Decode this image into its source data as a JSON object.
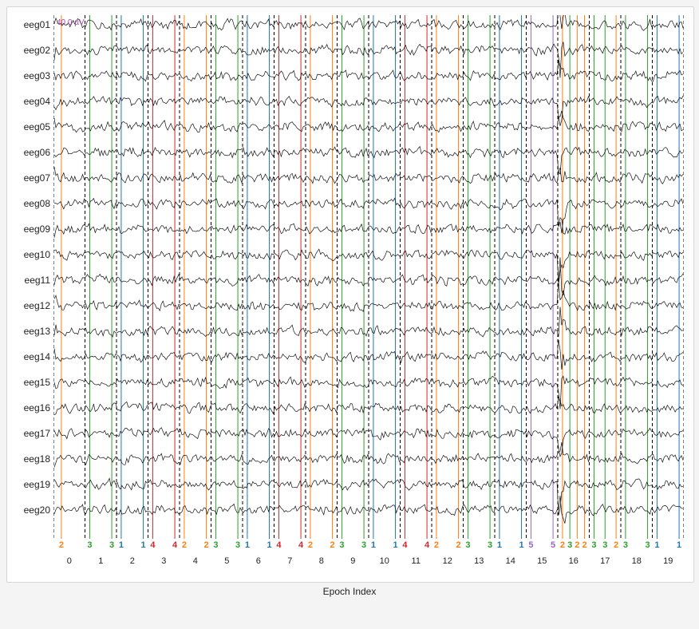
{
  "background_color": "#f4f4f4",
  "chart_bg": "#ffffff",
  "chart_border": "#d6d6d6",
  "xlabel": "Epoch Index",
  "xlabel_fontsize": 12,
  "scale_annotation": "40.0 µV",
  "scale_annotation_color": "#a846a8",
  "channels": [
    "eeg01",
    "eeg02",
    "eeg03",
    "eeg04",
    "eeg05",
    "eeg06",
    "eeg07",
    "eeg08",
    "eeg09",
    "eeg10",
    "eeg11",
    "eeg12",
    "eeg13",
    "eeg14",
    "eeg15",
    "eeg16",
    "eeg17",
    "eeg18",
    "eeg19",
    "eeg20"
  ],
  "channel_count": 20,
  "channel_label_fontsize": 12,
  "waveform_color": "#111111",
  "waveform_linewidth": 0.7,
  "xlim": [
    -0.5,
    19.5
  ],
  "xtick_step": 1,
  "xticks": [
    0,
    1,
    2,
    3,
    4,
    5,
    6,
    7,
    8,
    9,
    10,
    11,
    12,
    13,
    14,
    15,
    16,
    17,
    18,
    19
  ],
  "epoch_separator_color": "#000000",
  "epoch_separator_dash": "4,3",
  "epoch_separator_width": 1.0,
  "events": [
    {
      "epoch": 0,
      "labels": [
        "2"
      ],
      "colors": [
        "#ff7f0e"
      ]
    },
    {
      "epoch": 1,
      "labels": [
        "3",
        "3"
      ],
      "colors": [
        "#2ca02c",
        "#2ca02c"
      ]
    },
    {
      "epoch": 2,
      "labels": [
        "1",
        "1"
      ],
      "colors": [
        "#1f77b4",
        "#1f77b4"
      ]
    },
    {
      "epoch": 3,
      "labels": [
        "4",
        "4"
      ],
      "colors": [
        "#d62728",
        "#d62728"
      ]
    },
    {
      "epoch": 4,
      "labels": [
        "2",
        "2"
      ],
      "colors": [
        "#ff7f0e",
        "#ff7f0e"
      ]
    },
    {
      "epoch": 5,
      "labels": [
        "3",
        "3"
      ],
      "colors": [
        "#2ca02c",
        "#2ca02c"
      ]
    },
    {
      "epoch": 6,
      "labels": [
        "1",
        "1"
      ],
      "colors": [
        "#1f77b4",
        "#1f77b4"
      ]
    },
    {
      "epoch": 7,
      "labels": [
        "4",
        "4"
      ],
      "colors": [
        "#d62728",
        "#d62728"
      ]
    },
    {
      "epoch": 8,
      "labels": [
        "2",
        "2"
      ],
      "colors": [
        "#ff7f0e",
        "#ff7f0e"
      ]
    },
    {
      "epoch": 9,
      "labels": [
        "3",
        "3"
      ],
      "colors": [
        "#2ca02c",
        "#2ca02c"
      ]
    },
    {
      "epoch": 10,
      "labels": [
        "1",
        "1"
      ],
      "colors": [
        "#1f77b4",
        "#1f77b4"
      ]
    },
    {
      "epoch": 11,
      "labels": [
        "4",
        "4"
      ],
      "colors": [
        "#d62728",
        "#d62728"
      ]
    },
    {
      "epoch": 12,
      "labels": [
        "2",
        "2"
      ],
      "colors": [
        "#ff7f0e",
        "#ff7f0e"
      ]
    },
    {
      "epoch": 13,
      "labels": [
        "3",
        "3"
      ],
      "colors": [
        "#2ca02c",
        "#2ca02c"
      ]
    },
    {
      "epoch": 14,
      "labels": [
        "1",
        "1"
      ],
      "colors": [
        "#1f77b4",
        "#1f77b4"
      ]
    },
    {
      "epoch": 15,
      "labels": [
        "5",
        "5"
      ],
      "colors": [
        "#9467bd",
        "#9467bd"
      ]
    },
    {
      "epoch": 16,
      "labels": [
        "2",
        "3",
        "2",
        "2"
      ],
      "colors": [
        "#ff7f0e",
        "#2ca02c",
        "#ff7f0e",
        "#ff7f0e"
      ]
    },
    {
      "epoch": 17,
      "labels": [
        "3",
        "3",
        "2"
      ],
      "colors": [
        "#2ca02c",
        "#2ca02c",
        "#ff7f0e"
      ]
    },
    {
      "epoch": 18,
      "labels": [
        "3",
        "3"
      ],
      "colors": [
        "#2ca02c",
        "#2ca02c"
      ]
    },
    {
      "epoch": 19,
      "labels": [
        "1",
        "1"
      ],
      "colors": [
        "#1f77b4",
        "#1f77b4"
      ]
    }
  ],
  "event_line_width": 1.0,
  "artifact_epoch": 16,
  "artifact_amplitude_mult": 7
}
